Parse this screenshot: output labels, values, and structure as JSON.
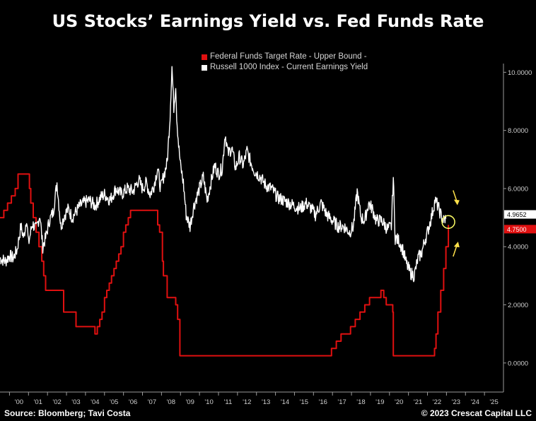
{
  "chart_data": {
    "type": "line",
    "title": "US Stocks’ Earnings Yield vs. Fed Funds Rate",
    "xlabel": "",
    "ylabel": "",
    "xlim": [
      1999.5,
      2026
    ],
    "ylim": [
      -1,
      10.3
    ],
    "y_ticks": [
      0,
      2,
      4,
      6,
      8,
      10
    ],
    "y_tick_labels": [
      "0.0000",
      "2.0000",
      "4.0000",
      "6.0000",
      "8.0000",
      "10.0000"
    ],
    "x_tick_labels": [
      "'00",
      "'01",
      "'02",
      "'03",
      "'04",
      "'05",
      "'06",
      "'07",
      "'08",
      "'09",
      "'10",
      "'11",
      "'12",
      "'13",
      "'14",
      "'15",
      "'16",
      "'17",
      "'18",
      "'19",
      "'20",
      "'21",
      "'22",
      "'23",
      "'24",
      "'25"
    ],
    "series": [
      {
        "name": "Federal Funds Target Rate - Upper Bound -",
        "color": "#e01010",
        "last_value_label": "4.7500",
        "x": [
          1999.5,
          1999.7,
          1999.9,
          2000.1,
          2000.3,
          2000.45,
          2000.55,
          2000.9,
          2001.05,
          2001.12,
          2001.25,
          2001.4,
          2001.55,
          2001.7,
          2001.8,
          2001.9,
          2002.85,
          2003.5,
          2004.5,
          2004.62,
          2004.75,
          2004.87,
          2005.0,
          2005.12,
          2005.25,
          2005.37,
          2005.5,
          2005.62,
          2005.75,
          2005.87,
          2006.0,
          2006.12,
          2006.25,
          2006.37,
          2006.5,
          2007.7,
          2007.8,
          2007.9,
          2008.05,
          2008.1,
          2008.3,
          2008.75,
          2008.85,
          2008.97,
          2015.95,
          2016.95,
          2017.2,
          2017.45,
          2017.95,
          2018.2,
          2018.45,
          2018.7,
          2018.95,
          2019.55,
          2019.7,
          2019.83,
          2020.17,
          2020.2,
          2022.2,
          2022.37,
          2022.45,
          2022.55,
          2022.7,
          2022.85,
          2022.97,
          2023.1
        ],
        "y": [
          5.0,
          5.25,
          5.5,
          5.75,
          6.0,
          6.5,
          6.5,
          6.5,
          6.0,
          5.5,
          5.0,
          4.5,
          4.0,
          3.5,
          3.0,
          2.5,
          1.75,
          1.25,
          1.0,
          1.25,
          1.5,
          1.75,
          2.25,
          2.5,
          2.75,
          3.0,
          3.25,
          3.5,
          3.75,
          4.0,
          4.5,
          4.75,
          5.0,
          5.25,
          5.25,
          5.25,
          4.75,
          4.5,
          3.5,
          3.0,
          2.25,
          2.0,
          1.5,
          0.25,
          0.25,
          0.5,
          0.75,
          1.0,
          1.25,
          1.5,
          1.75,
          2.0,
          2.25,
          2.5,
          2.25,
          2.0,
          1.75,
          0.25,
          0.25,
          0.5,
          1.0,
          1.75,
          2.5,
          3.25,
          4.0,
          4.75
        ]
      },
      {
        "name": "Russell 1000 Index - Current Earnings Yield",
        "color": "#ffffff",
        "last_value_label": "4.9652",
        "x": [
          1999.5,
          1999.8,
          2000.0,
          2000.2,
          2000.4,
          2000.6,
          2000.75,
          2000.9,
          2001.0,
          2001.2,
          2001.4,
          2001.6,
          2001.75,
          2001.9,
          2002.1,
          2002.3,
          2002.5,
          2002.7,
          2002.9,
          2003.1,
          2003.3,
          2003.5,
          2003.7,
          2003.9,
          2004.2,
          2004.5,
          2004.8,
          2005.0,
          2005.3,
          2005.6,
          2005.9,
          2006.2,
          2006.5,
          2006.8,
          2007.0,
          2007.2,
          2007.4,
          2007.6,
          2007.8,
          2007.95,
          2008.1,
          2008.3,
          2008.45,
          2008.55,
          2008.65,
          2008.75,
          2008.8,
          2008.9,
          2009.0,
          2009.15,
          2009.3,
          2009.5,
          2009.7,
          2009.9,
          2010.2,
          2010.4,
          2010.6,
          2010.8,
          2011.0,
          2011.2,
          2011.35,
          2011.5,
          2011.7,
          2011.9,
          2012.1,
          2012.3,
          2012.5,
          2012.7,
          2012.9,
          2013.2,
          2013.5,
          2013.8,
          2014.1,
          2014.4,
          2014.7,
          2015.0,
          2015.3,
          2015.6,
          2015.9,
          2016.1,
          2016.4,
          2016.7,
          2017.0,
          2017.3,
          2017.6,
          2017.9,
          2018.1,
          2018.3,
          2018.5,
          2018.7,
          2018.9,
          2019.1,
          2019.3,
          2019.6,
          2019.9,
          2020.1,
          2020.2,
          2020.3,
          2020.5,
          2020.7,
          2020.9,
          2021.1,
          2021.3,
          2021.5,
          2021.7,
          2021.85,
          2022.0,
          2022.2,
          2022.4,
          2022.55,
          2022.7,
          2022.85,
          2022.97
        ],
        "y": [
          3.6,
          3.5,
          3.7,
          3.6,
          3.9,
          4.7,
          4.3,
          5.0,
          4.1,
          4.8,
          4.6,
          5.1,
          4.0,
          4.3,
          4.9,
          5.2,
          6.2,
          4.7,
          5.1,
          5.3,
          5.0,
          5.2,
          5.4,
          5.5,
          5.6,
          5.4,
          5.7,
          5.8,
          5.6,
          6.0,
          5.8,
          6.0,
          5.9,
          6.3,
          6.0,
          6.2,
          5.8,
          6.1,
          6.7,
          6.0,
          6.4,
          6.9,
          8.5,
          10.2,
          8.8,
          9.6,
          8.5,
          7.5,
          6.8,
          6.2,
          5.1,
          4.7,
          5.4,
          5.8,
          6.4,
          5.6,
          6.2,
          6.8,
          6.5,
          6.7,
          7.9,
          7.2,
          7.4,
          6.7,
          7.1,
          6.8,
          7.3,
          6.9,
          6.6,
          6.4,
          6.1,
          6.0,
          5.7,
          5.6,
          5.5,
          5.4,
          5.3,
          5.5,
          5.3,
          5.1,
          5.5,
          5.1,
          4.9,
          4.7,
          4.7,
          4.5,
          4.7,
          5.9,
          5.0,
          4.9,
          5.5,
          5.3,
          4.9,
          4.9,
          4.6,
          4.7,
          6.4,
          4.3,
          4.2,
          3.9,
          3.4,
          3.1,
          3.0,
          3.6,
          3.8,
          4.2,
          4.5,
          5.0,
          5.6,
          5.4,
          5.1,
          4.9,
          4.9652
        ]
      }
    ],
    "legend": [
      "Federal Funds Target Rate - Upper Bound -",
      "Russell 1000 Index - Current Earnings Yield"
    ],
    "legend_position": "top-center",
    "annotations": [
      {
        "type": "circle",
        "x": 2023.1,
        "y": 4.85,
        "color": "#ffff66",
        "note": "crossover highlight"
      },
      {
        "type": "arrow-down",
        "x": 2023.5,
        "y": 5.5,
        "color": "#ffe14a"
      },
      {
        "type": "arrow-up",
        "x": 2023.5,
        "y": 4.1,
        "color": "#ffe14a"
      }
    ],
    "grid": false
  },
  "footer": {
    "source": "Source: Bloomberg; Tavi Costa",
    "copyright": "© 2023 Crescat Capital LLC"
  }
}
